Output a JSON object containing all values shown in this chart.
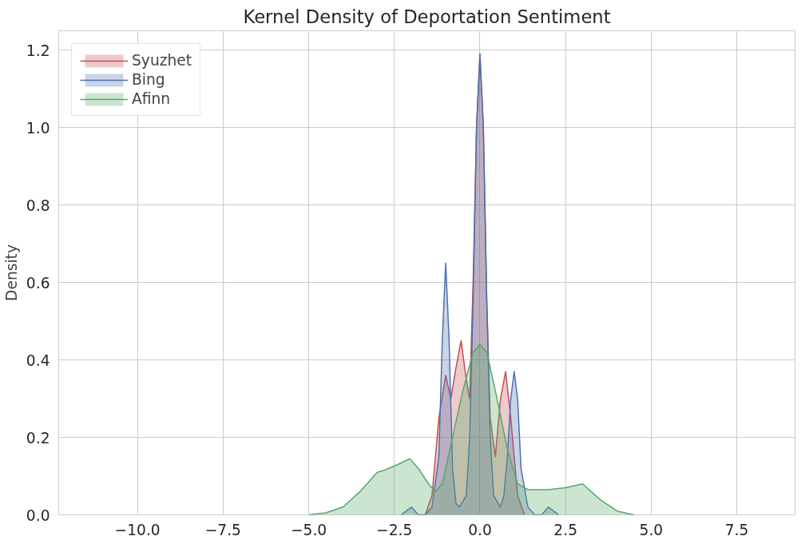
{
  "chart_data": {
    "type": "area",
    "title": "Kernel Density of Deportation Sentiment",
    "ylabel": "Density",
    "xlim": [
      -12.3,
      9.2
    ],
    "ylim": [
      0,
      1.25
    ],
    "xticks": [
      {
        "value": -10,
        "label": "−10.0"
      },
      {
        "value": -7.5,
        "label": "−7.5"
      },
      {
        "value": -5,
        "label": "−5.0"
      },
      {
        "value": -2.5,
        "label": "−2.5"
      },
      {
        "value": 0,
        "label": "0.0"
      },
      {
        "value": 2.5,
        "label": "2.5"
      },
      {
        "value": 5,
        "label": "5.0"
      },
      {
        "value": 7.5,
        "label": "7.5"
      }
    ],
    "yticks": [
      {
        "value": 0,
        "label": "0.0"
      },
      {
        "value": 0.2,
        "label": "0.2"
      },
      {
        "value": 0.4,
        "label": "0.4"
      },
      {
        "value": 0.6,
        "label": "0.6"
      },
      {
        "value": 0.8,
        "label": "0.8"
      },
      {
        "value": 1.0,
        "label": "1.0"
      },
      {
        "value": 1.2,
        "label": "1.2"
      }
    ],
    "grid": true,
    "legend": "top left",
    "series": [
      {
        "name": "Syuzhet",
        "color": "#c44e52",
        "x": [
          -1.6,
          -1.4,
          -1.2,
          -1.0,
          -0.85,
          -0.7,
          -0.55,
          -0.4,
          -0.3,
          -0.2,
          -0.1,
          0,
          0.1,
          0.2,
          0.3,
          0.45,
          0.6,
          0.75,
          0.9,
          1.1,
          1.3
        ],
        "values": [
          0,
          0.05,
          0.25,
          0.36,
          0.3,
          0.38,
          0.45,
          0.35,
          0.3,
          0.6,
          1.0,
          1.19,
          1.0,
          0.55,
          0.25,
          0.15,
          0.3,
          0.37,
          0.25,
          0.05,
          0
        ]
      },
      {
        "name": "Bing",
        "color": "#4c72b0",
        "x": [
          -2.3,
          -2.0,
          -1.8,
          -1.6,
          -1.4,
          -1.2,
          -1.1,
          -1.0,
          -0.9,
          -0.8,
          -0.7,
          -0.6,
          -0.4,
          -0.3,
          -0.2,
          -0.1,
          0,
          0.1,
          0.2,
          0.3,
          0.4,
          0.6,
          0.7,
          0.8,
          0.9,
          1.0,
          1.1,
          1.2,
          1.4,
          1.6,
          1.8,
          2.0,
          2.3
        ],
        "values": [
          0,
          0.02,
          0,
          0,
          0.02,
          0.15,
          0.45,
          0.65,
          0.45,
          0.12,
          0.03,
          0.02,
          0.05,
          0.2,
          0.55,
          1.0,
          1.19,
          1.0,
          0.55,
          0.2,
          0.05,
          0.02,
          0.05,
          0.15,
          0.3,
          0.37,
          0.3,
          0.12,
          0.02,
          0,
          0,
          0.02,
          0
        ]
      },
      {
        "name": "Afinn",
        "color": "#55a868",
        "x": [
          -5.0,
          -4.5,
          -4.0,
          -3.5,
          -3.0,
          -2.8,
          -2.4,
          -2.05,
          -1.8,
          -1.5,
          -1.3,
          -1.1,
          -0.8,
          -0.5,
          -0.2,
          0,
          0.2,
          0.5,
          0.8,
          1.1,
          1.4,
          2.0,
          2.5,
          3.0,
          3.5,
          4.0,
          4.5
        ],
        "values": [
          0,
          0.005,
          0.02,
          0.06,
          0.11,
          0.115,
          0.13,
          0.145,
          0.12,
          0.08,
          0.06,
          0.08,
          0.2,
          0.32,
          0.42,
          0.44,
          0.42,
          0.3,
          0.17,
          0.08,
          0.065,
          0.065,
          0.07,
          0.08,
          0.04,
          0.01,
          0
        ]
      }
    ]
  }
}
